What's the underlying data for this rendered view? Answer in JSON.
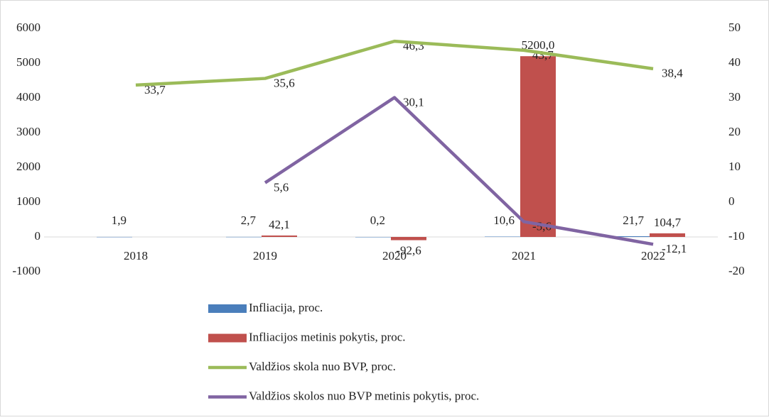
{
  "chart_data": {
    "type": "bar",
    "categories": [
      "2018",
      "2019",
      "2020",
      "2021",
      "2022"
    ],
    "series": [
      {
        "name": "Infliacija, proc.",
        "type": "bar",
        "color": "#4a7ebb",
        "values": [
          1.9,
          2.7,
          0.2,
          10.6,
          21.7
        ],
        "value_labels": [
          "1,9",
          "2,7",
          "0,2",
          "10,6",
          "21,7"
        ]
      },
      {
        "name": "Infliacijos metinis pokytis, proc.",
        "type": "bar",
        "color": "#c0504d",
        "values": [
          null,
          42.1,
          -92.6,
          5200.0,
          104.7
        ],
        "value_labels": [
          null,
          "42,1",
          "-92,6",
          "5200,0",
          "104,7"
        ]
      },
      {
        "name": "Valdžios skola nuo BVP, proc.",
        "type": "line",
        "axis": "y2",
        "color": "#9bbb59",
        "values": [
          33.7,
          35.6,
          46.3,
          43.7,
          38.4
        ],
        "value_labels": [
          "33,7",
          "35,6",
          "46,3",
          "43,7",
          "38,4"
        ]
      },
      {
        "name": "Valdžios skolos nuo BVP metinis pokytis, proc.",
        "type": "line",
        "axis": "y2",
        "color": "#8064a2",
        "values": [
          null,
          5.6,
          30.1,
          -5.6,
          -12.1
        ],
        "value_labels": [
          null,
          "5,6",
          "30,1",
          "-5,6",
          "-12,1"
        ]
      }
    ],
    "ylim": [
      -1000,
      6000
    ],
    "yticks": [
      -1000,
      0,
      1000,
      2000,
      3000,
      4000,
      5000,
      6000
    ],
    "y2lim": [
      -20,
      50
    ],
    "y2ticks": [
      -20,
      -10,
      0,
      10,
      20,
      30,
      40,
      50
    ],
    "legend": "bottom",
    "grid": false
  }
}
